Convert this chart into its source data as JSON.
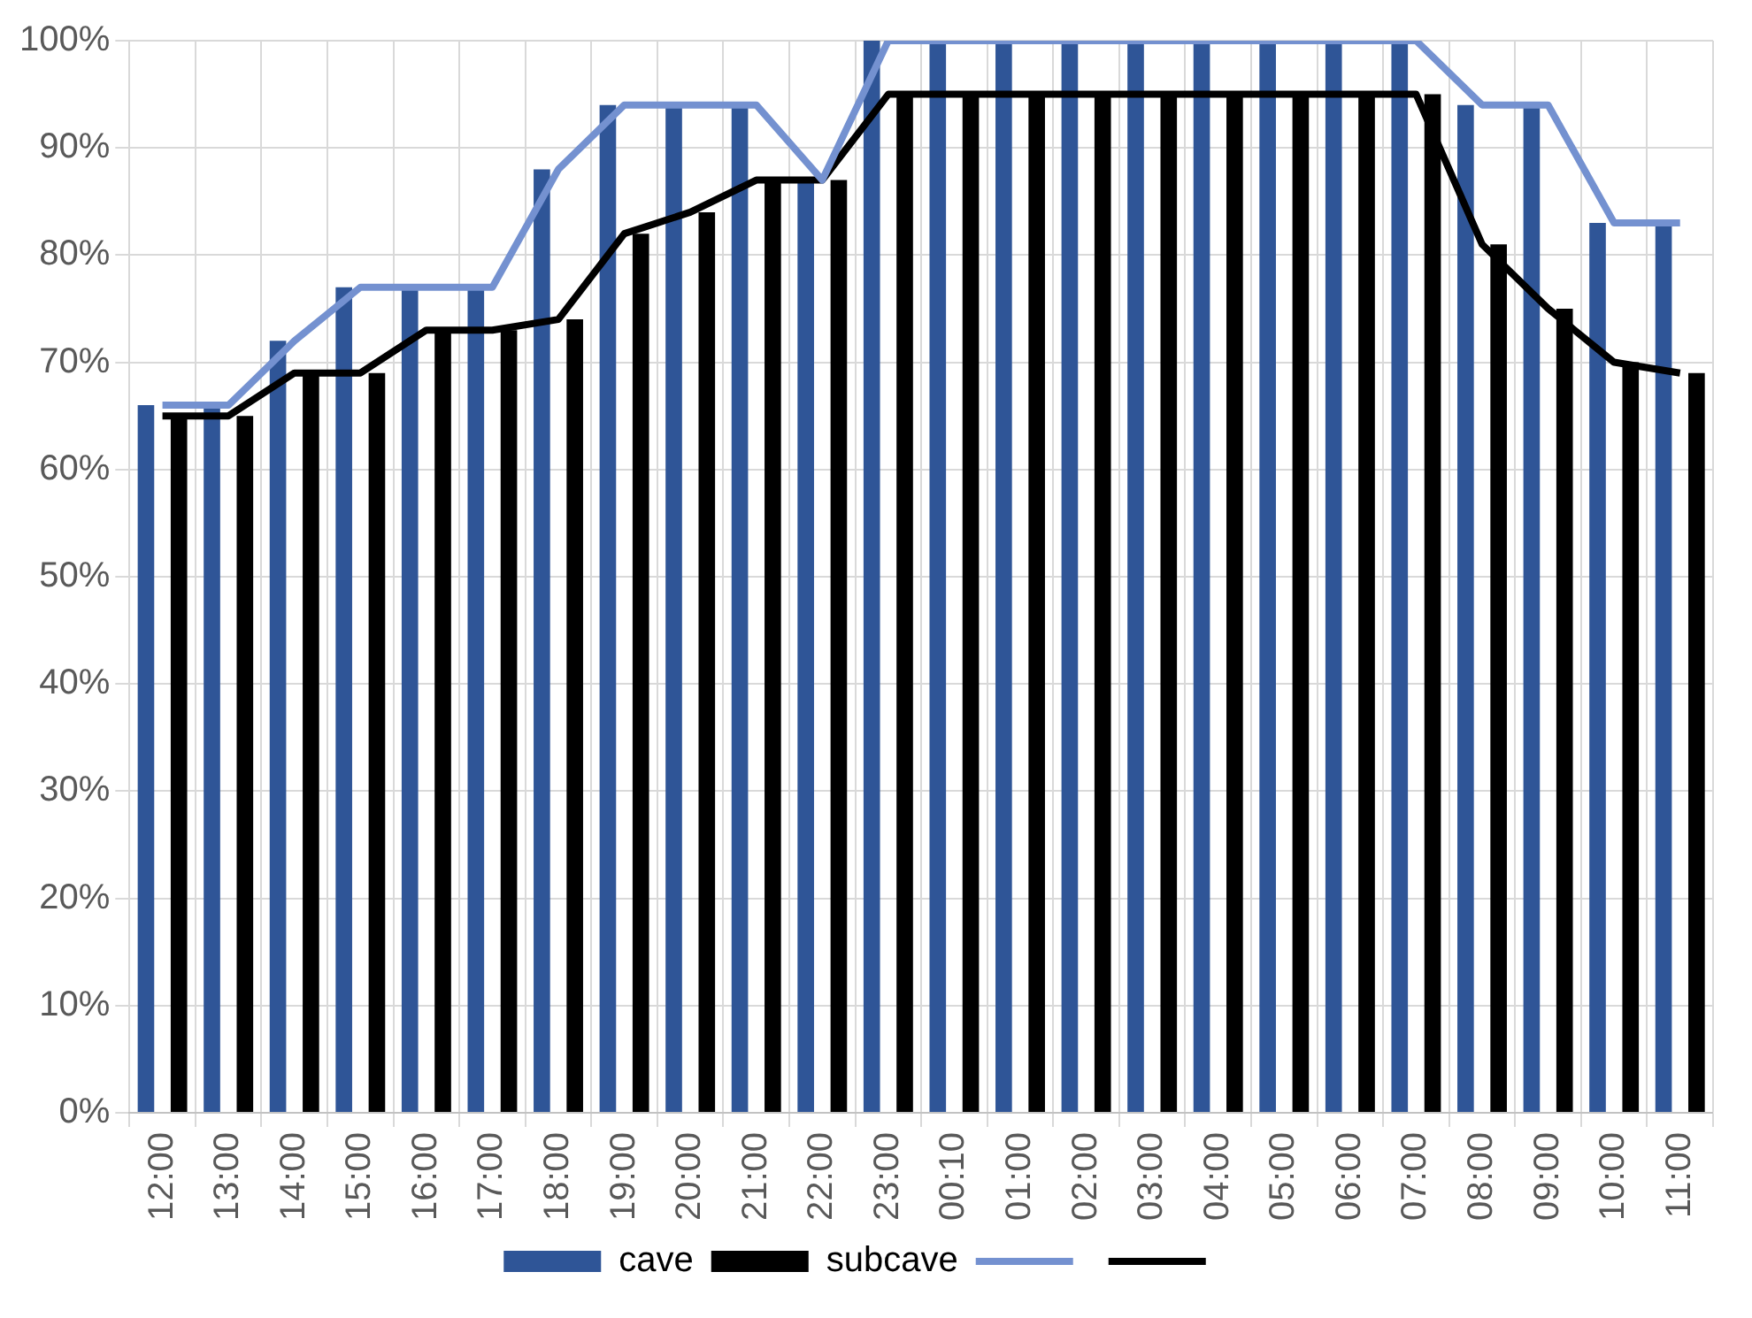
{
  "chart_data": {
    "type": "bar",
    "categories": [
      "12:00",
      "13:00",
      "14:00",
      "15:00",
      "16:00",
      "17:00",
      "18:00",
      "19:00",
      "20:00",
      "21:00",
      "22:00",
      "23:00",
      "00:10",
      "01:00",
      "02:00",
      "03:00",
      "04:00",
      "05:00",
      "06:00",
      "07:00",
      "08:00",
      "09:00",
      "10:00",
      "11:00"
    ],
    "series": [
      {
        "name": "cave",
        "color": "#2f5597",
        "values": [
          66,
          66,
          72,
          77,
          77,
          77,
          88,
          94,
          94,
          94,
          87,
          100,
          100,
          100,
          100,
          100,
          100,
          100,
          100,
          100,
          94,
          94,
          83,
          83
        ]
      },
      {
        "name": "subcave",
        "color": "#000000",
        "values": [
          65,
          65,
          69,
          69,
          73,
          73,
          74,
          82,
          84,
          87,
          87,
          95,
          95,
          95,
          95,
          95,
          95,
          95,
          95,
          95,
          81,
          75,
          70,
          69
        ]
      },
      {
        "type": "line",
        "color": "#7491d0",
        "values": [
          66,
          66,
          72,
          77,
          77,
          77,
          88,
          94,
          94,
          94,
          87,
          100,
          100,
          100,
          100,
          100,
          100,
          100,
          100,
          100,
          94,
          94,
          83,
          83
        ]
      },
      {
        "type": "line",
        "color": "#000000",
        "values": [
          65,
          65,
          69,
          69,
          73,
          73,
          74,
          82,
          84,
          87,
          87,
          95,
          95,
          95,
          95,
          95,
          95,
          95,
          95,
          95,
          81,
          75,
          70,
          69
        ]
      }
    ],
    "ylim": [
      0,
      100
    ],
    "yticks": [
      {
        "value": 0,
        "label": "0%"
      },
      {
        "value": 10,
        "label": "10%"
      },
      {
        "value": 20,
        "label": "20%"
      },
      {
        "value": 30,
        "label": "30%"
      },
      {
        "value": 40,
        "label": "40%"
      },
      {
        "value": 50,
        "label": "50%"
      },
      {
        "value": 60,
        "label": "60%"
      },
      {
        "value": 70,
        "label": "70%"
      },
      {
        "value": 80,
        "label": "80%"
      },
      {
        "value": 90,
        "label": "90%"
      },
      {
        "value": 100,
        "label": "100%"
      }
    ],
    "grid": true,
    "legend": "bottom",
    "marker": "none",
    "line_style": "solid"
  }
}
